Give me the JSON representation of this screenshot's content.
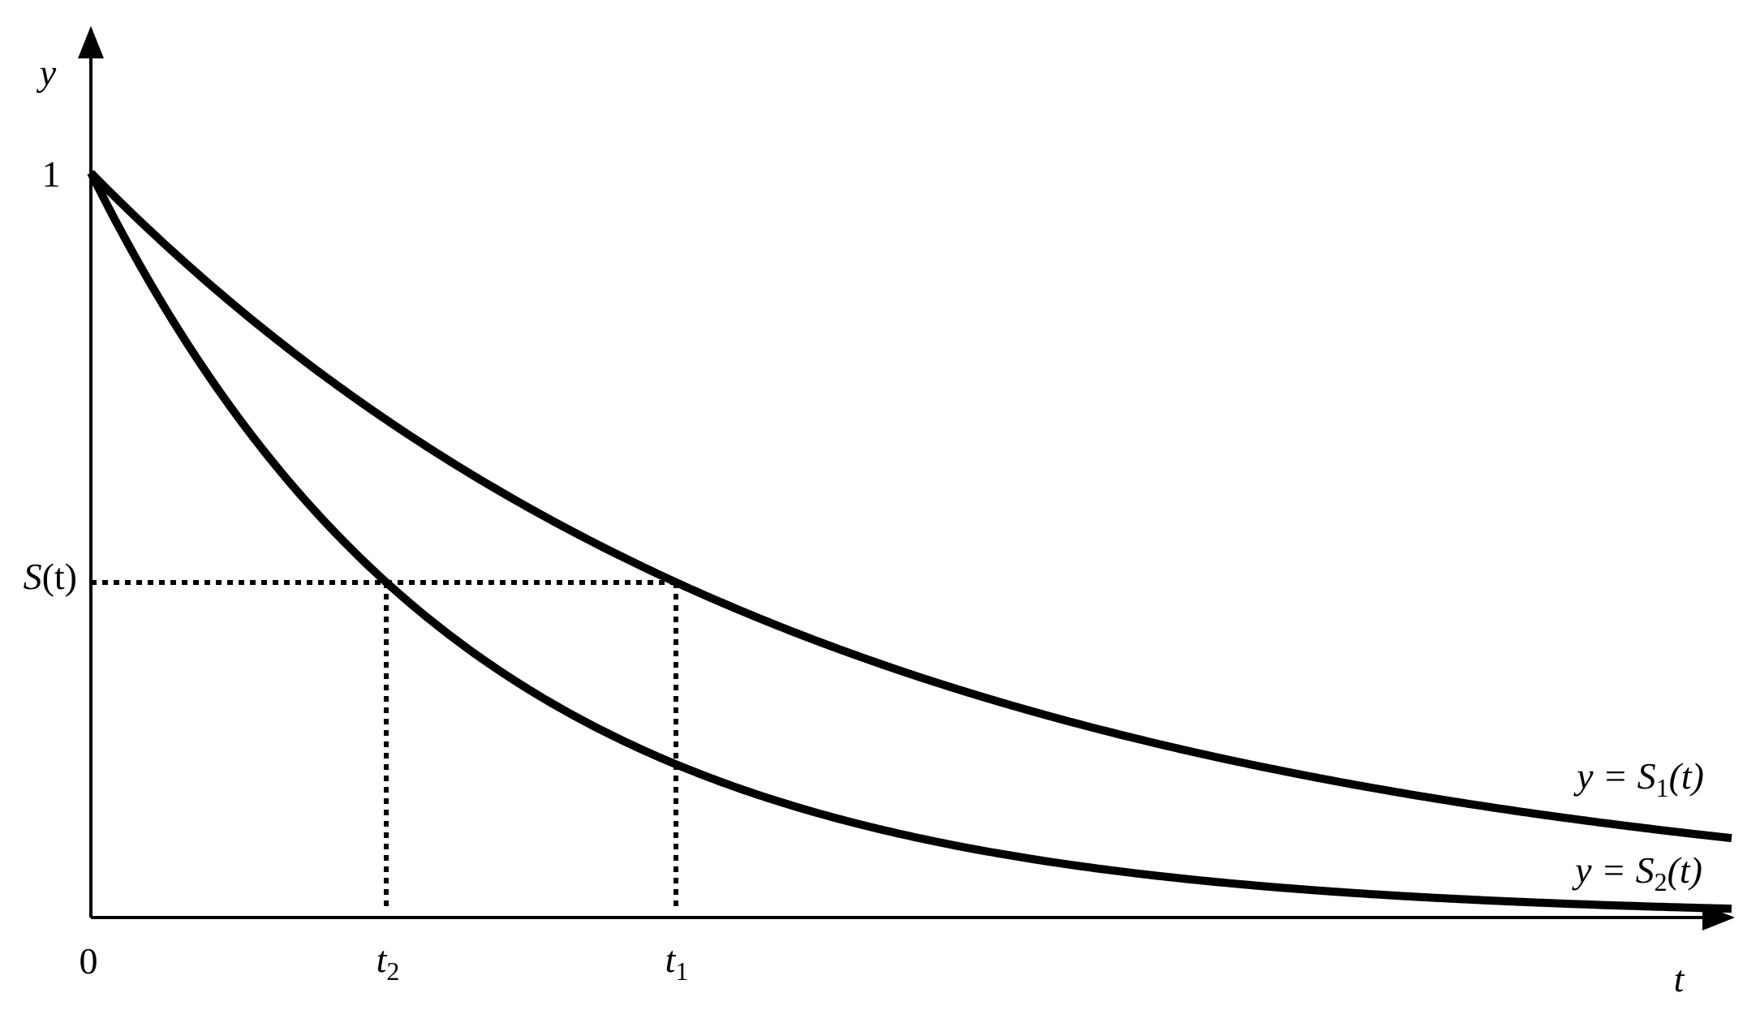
{
  "axes": {
    "y_label": "y",
    "y_one": "1",
    "y_level": {
      "base": "S",
      "arg": "(t)"
    },
    "origin": "0",
    "x_label": "t",
    "x_marks": [
      {
        "base": "t",
        "sub": "2"
      },
      {
        "base": "t",
        "sub": "1"
      }
    ]
  },
  "curves": [
    {
      "prefix": "y = S",
      "sub": "1",
      "suffix": "(t)"
    },
    {
      "prefix": "y = S",
      "sub": "2",
      "suffix": "(t)"
    }
  ]
}
